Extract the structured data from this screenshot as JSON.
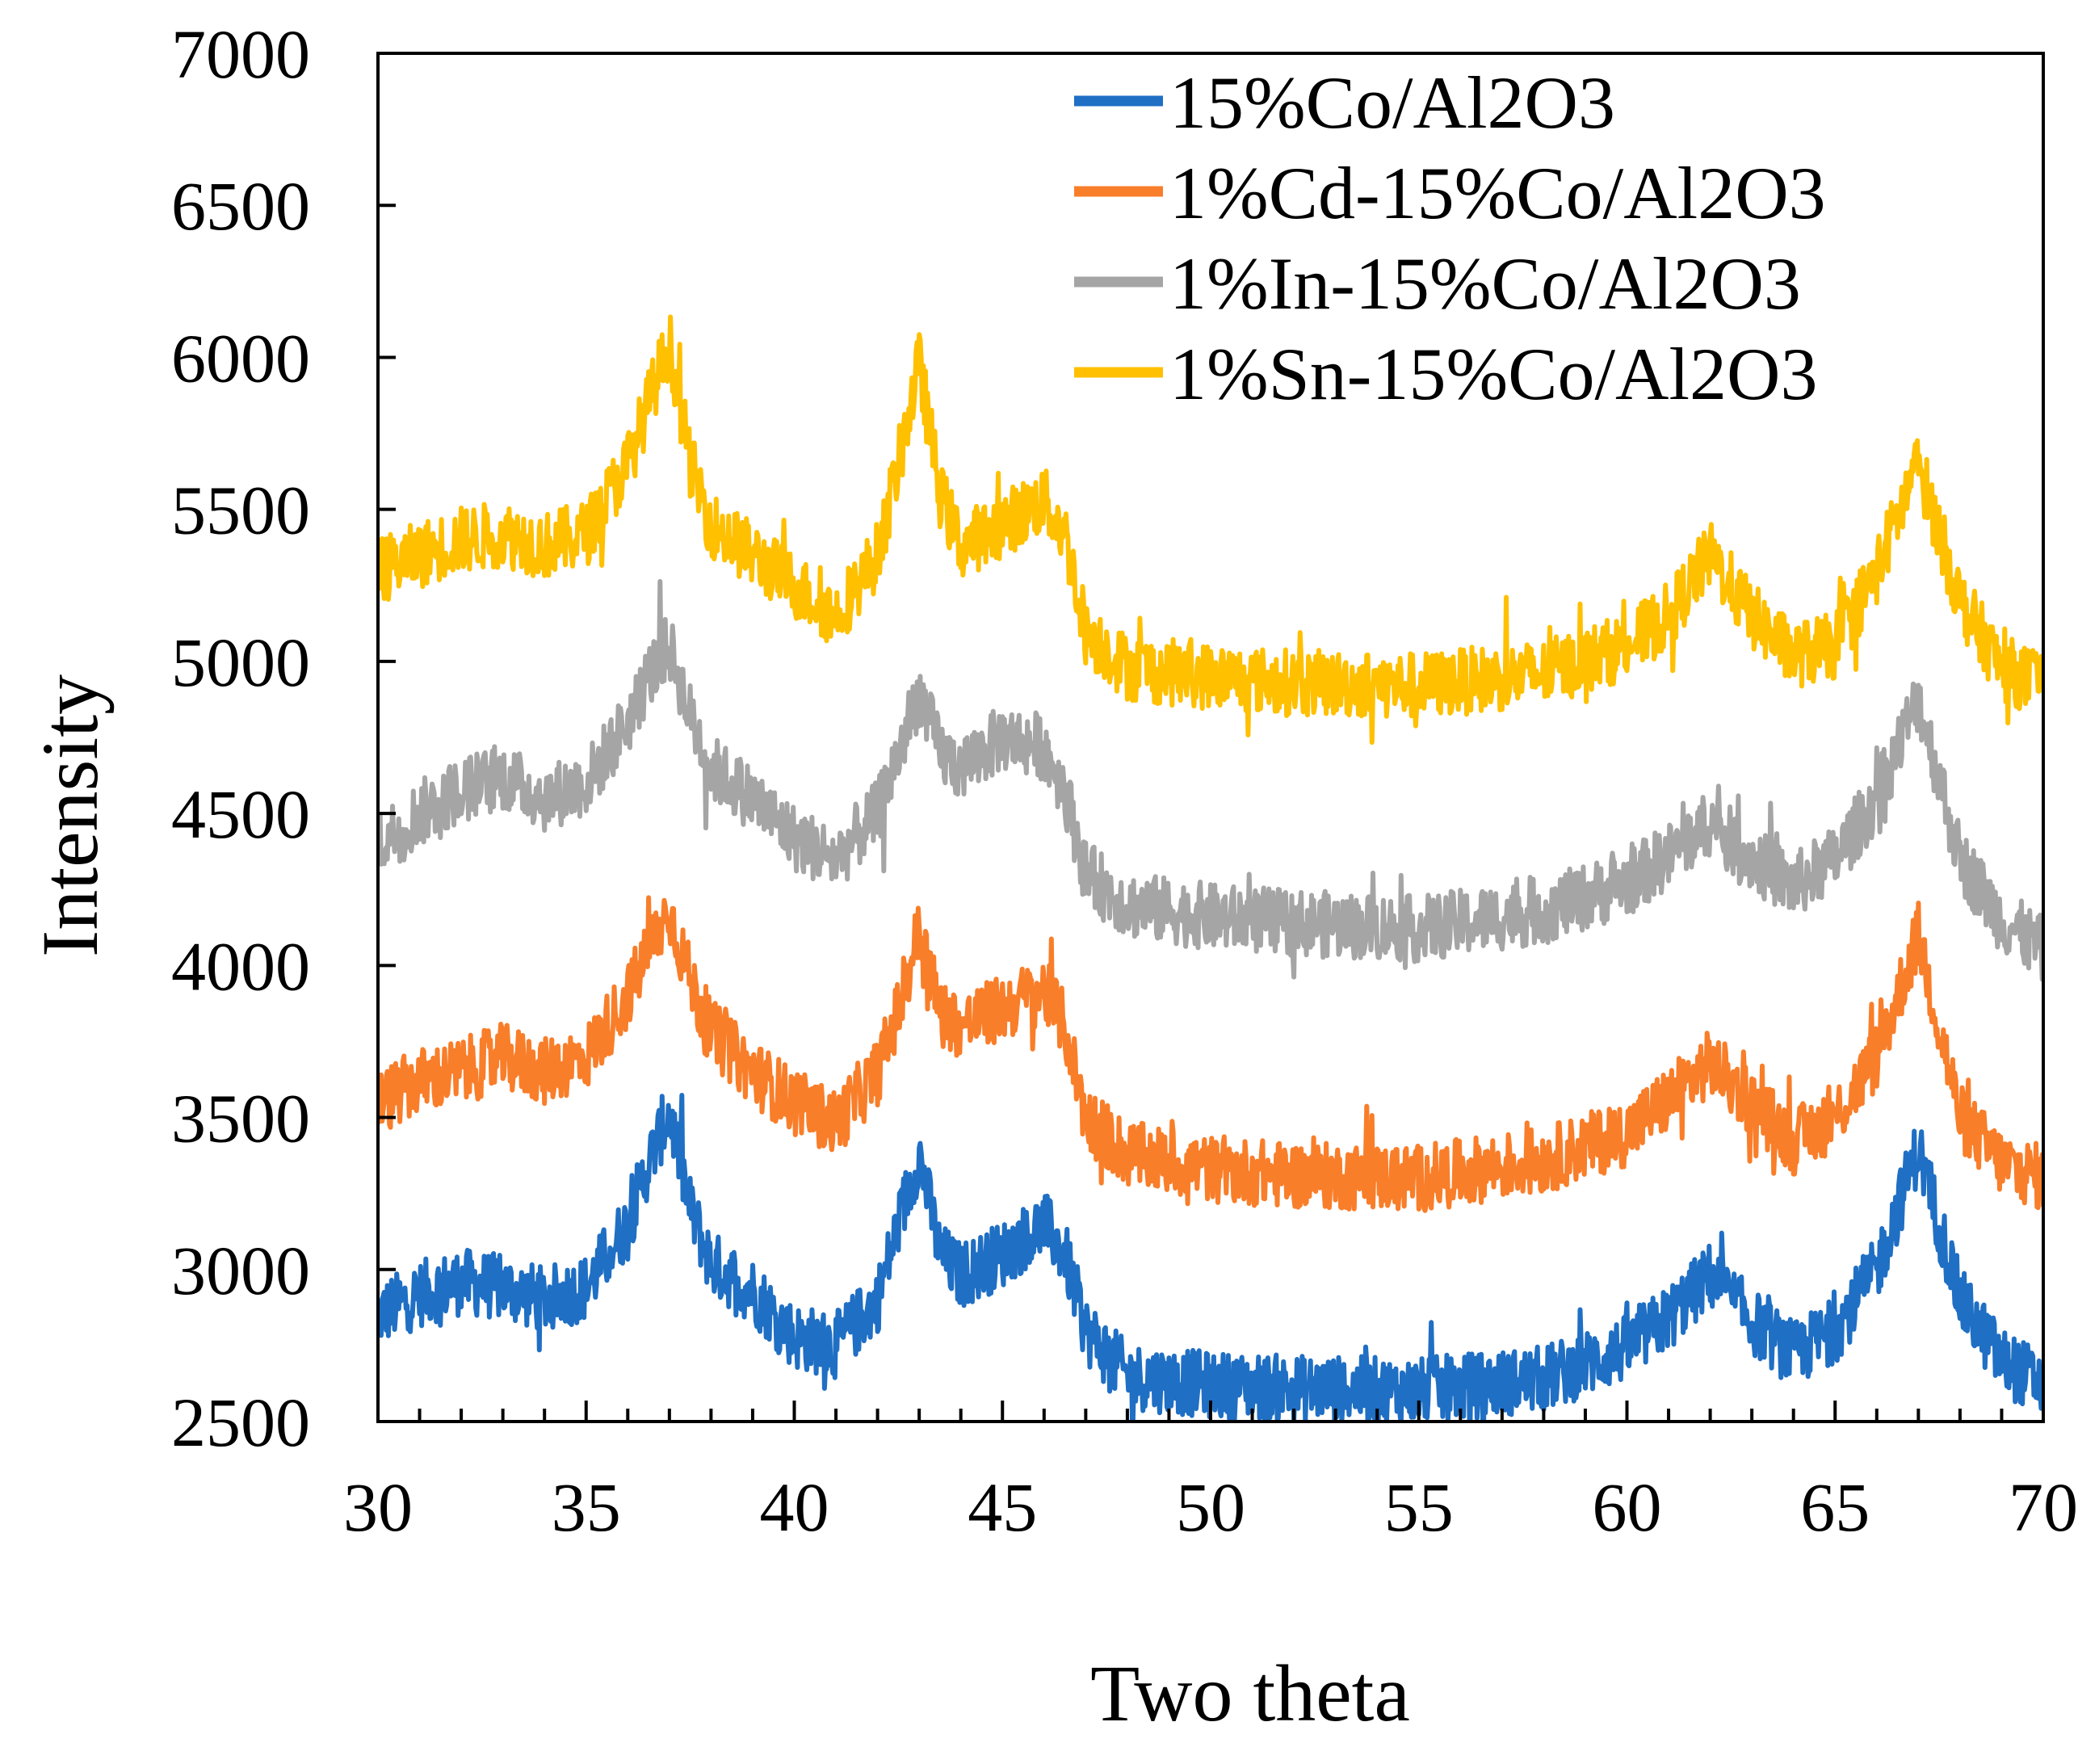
{
  "chart_data": {
    "type": "line",
    "title": "",
    "xlabel": "Two theta",
    "ylabel": "Intensity",
    "xlim": [
      30,
      70
    ],
    "ylim": [
      2500,
      7000
    ],
    "x_ticks": [
      30,
      35,
      40,
      45,
      50,
      55,
      60,
      65,
      70
    ],
    "y_ticks": [
      2500,
      3000,
      3500,
      4000,
      4500,
      5000,
      5500,
      6000,
      6500,
      7000
    ],
    "x_minor_step": 1,
    "legend_position": "top-right",
    "grid": false,
    "noise_amplitude": 110,
    "series": [
      {
        "name": "15%Co/Al2O3",
        "color": "#1f6fc4",
        "x": [
          30,
          31,
          32,
          33,
          34,
          35,
          36,
          36.5,
          37,
          37.5,
          38,
          39,
          40,
          41,
          42,
          42.5,
          43,
          43.5,
          44,
          45,
          46,
          46.5,
          47,
          48,
          50,
          52,
          55,
          58,
          60,
          61,
          62,
          63,
          64,
          65,
          66,
          67,
          68,
          69,
          70
        ],
        "values": [
          2850,
          2920,
          2960,
          2940,
          2900,
          2940,
          3150,
          3350,
          3520,
          3200,
          3020,
          2930,
          2780,
          2750,
          2900,
          3150,
          3380,
          3050,
          2980,
          3050,
          3150,
          3050,
          2800,
          2650,
          2620,
          2610,
          2600,
          2640,
          2740,
          2840,
          2980,
          2830,
          2720,
          2800,
          3000,
          3400,
          2900,
          2700,
          2620
        ]
      },
      {
        "name": "1%Cd-15%Co/Al2O3",
        "color": "#f97e2a",
        "x": [
          30,
          31,
          32,
          33,
          34,
          35,
          36,
          36.5,
          37,
          37.5,
          38,
          39,
          40,
          41,
          42,
          42.5,
          43,
          43.5,
          44,
          45,
          46,
          46.5,
          47,
          48,
          50,
          52,
          55,
          58,
          60,
          61,
          62,
          63,
          64,
          65,
          66,
          67,
          68,
          69,
          70
        ],
        "values": [
          3550,
          3620,
          3650,
          3700,
          3650,
          3700,
          3900,
          4050,
          4180,
          3950,
          3780,
          3650,
          3550,
          3480,
          3650,
          3850,
          4120,
          3850,
          3800,
          3860,
          3920,
          3800,
          3500,
          3380,
          3330,
          3310,
          3300,
          3360,
          3450,
          3560,
          3680,
          3550,
          3420,
          3500,
          3700,
          4100,
          3500,
          3350,
          3300
        ]
      },
      {
        "name": "1%In-15%Co/Al2O3",
        "color": "#a5a5a5",
        "x": [
          30,
          31,
          32,
          33,
          34,
          35,
          36,
          36.5,
          37,
          37.5,
          38,
          39,
          40,
          41,
          42,
          42.5,
          43,
          43.5,
          44,
          45,
          46,
          46.5,
          47,
          48,
          50,
          52,
          55,
          58,
          60,
          61,
          62,
          63,
          64,
          65,
          66,
          67,
          68,
          69,
          70
        ],
        "values": [
          4400,
          4500,
          4580,
          4620,
          4550,
          4600,
          4800,
          4950,
          5050,
          4820,
          4650,
          4550,
          4420,
          4350,
          4500,
          4700,
          4900,
          4700,
          4650,
          4750,
          4720,
          4580,
          4300,
          4200,
          4160,
          4140,
          4120,
          4180,
          4270,
          4360,
          4470,
          4350,
          4260,
          4350,
          4550,
          4880,
          4350,
          4150,
          4050
        ]
      },
      {
        "name": "1%Sn-15%Co/Al2O3",
        "color": "#ffc000",
        "x": [
          30,
          31,
          32,
          33,
          34,
          35,
          36,
          36.5,
          37,
          37.5,
          38,
          39,
          40,
          41,
          42,
          42.5,
          43,
          43.5,
          44,
          45,
          46,
          46.5,
          47,
          48,
          50,
          52,
          55,
          58,
          60,
          61,
          62,
          63,
          64,
          65,
          66,
          67,
          68,
          69,
          70
        ],
        "values": [
          5300,
          5350,
          5400,
          5420,
          5380,
          5420,
          5650,
          5850,
          6050,
          5650,
          5450,
          5350,
          5250,
          5150,
          5350,
          5650,
          5980,
          5550,
          5380,
          5450,
          5530,
          5420,
          5100,
          4980,
          4950,
          4930,
          4920,
          4960,
          5050,
          5150,
          5350,
          5150,
          5020,
          5050,
          5300,
          5650,
          5200,
          4980,
          4920
        ]
      }
    ]
  }
}
